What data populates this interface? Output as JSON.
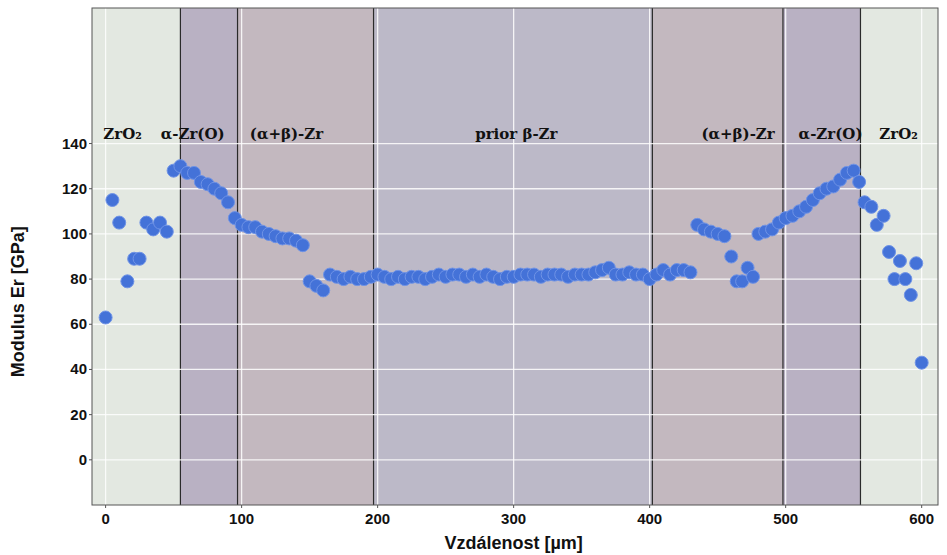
{
  "chart_data": {
    "type": "scatter",
    "xlabel": "Vzdálenost [µm]",
    "ylabel": "Modulus Er [GPa]",
    "xlim": [
      -10,
      612
    ],
    "ylim": [
      -20,
      200
    ],
    "xticks": [
      0,
      100,
      200,
      300,
      400,
      500,
      600
    ],
    "yticks": [
      0,
      20,
      40,
      60,
      80,
      100,
      120,
      140
    ],
    "grid": true,
    "color": "#4472d8",
    "marker": "circle",
    "regions": [
      {
        "x0": -10,
        "x1": 55,
        "color": "#e3e8e1"
      },
      {
        "x0": 55,
        "x1": 97,
        "color": "#b9b1c3"
      },
      {
        "x0": 97,
        "x1": 197,
        "color": "#c3b8bf"
      },
      {
        "x0": 197,
        "x1": 402,
        "color": "#bcb9c8"
      },
      {
        "x0": 402,
        "x1": 498,
        "color": "#c3b8bf"
      },
      {
        "x0": 498,
        "x1": 555,
        "color": "#b9b1c3"
      },
      {
        "x0": 555,
        "x1": 612,
        "color": "#e3e8e1"
      }
    ],
    "annotations": [
      {
        "text": "ZrO₂",
        "x": 12.5,
        "y": 142
      },
      {
        "text": "α-Zr(O)",
        "x": 64,
        "y": 142
      },
      {
        "text": "(α+β)-Zr",
        "x": 133,
        "y": 142
      },
      {
        "text": "prior β-Zr",
        "x": 302,
        "y": 142
      },
      {
        "text": "(α+β)-Zr",
        "x": 465,
        "y": 142
      },
      {
        "text": "α-Zr(O)",
        "x": 533,
        "y": 142
      },
      {
        "text": "ZrO₂",
        "x": 583,
        "y": 142
      }
    ],
    "x": [
      0,
      5,
      10,
      16,
      21,
      25,
      30,
      35,
      40,
      45,
      50,
      55,
      60,
      65,
      70,
      75,
      80,
      85,
      90,
      95,
      100,
      105,
      110,
      115,
      120,
      125,
      130,
      135,
      140,
      145,
      150,
      155,
      160,
      165,
      170,
      175,
      180,
      185,
      190,
      195,
      200,
      205,
      210,
      215,
      220,
      225,
      230,
      235,
      240,
      245,
      250,
      255,
      260,
      265,
      270,
      275,
      280,
      285,
      290,
      295,
      300,
      305,
      310,
      315,
      320,
      325,
      330,
      335,
      340,
      345,
      350,
      355,
      360,
      365,
      370,
      375,
      380,
      385,
      390,
      395,
      400,
      405,
      410,
      415,
      420,
      425,
      430,
      435,
      440,
      445,
      450,
      455,
      460,
      464,
      468,
      472,
      476,
      480,
      485,
      490,
      495,
      500,
      505,
      510,
      515,
      520,
      525,
      530,
      535,
      540,
      545,
      550,
      554,
      558,
      563,
      567,
      572,
      576,
      580,
      584,
      588,
      592,
      596,
      600
    ],
    "values": [
      63,
      115,
      105,
      79,
      89,
      89,
      105,
      102,
      105,
      101,
      128,
      130,
      127,
      127,
      123,
      122,
      120,
      118,
      114,
      107,
      104,
      103,
      103,
      101,
      100,
      99,
      98,
      98,
      97,
      95,
      79,
      77,
      75,
      82,
      81,
      80,
      81,
      80,
      80,
      81,
      82,
      81,
      80,
      81,
      80,
      81,
      81,
      80,
      81,
      82,
      81,
      82,
      82,
      81,
      82,
      81,
      82,
      81,
      80,
      81,
      81,
      82,
      82,
      82,
      81,
      82,
      82,
      82,
      81,
      82,
      82,
      82,
      83,
      84,
      85,
      82,
      82,
      83,
      82,
      82,
      80,
      82,
      84,
      82,
      84,
      84,
      83,
      104,
      102,
      101,
      100,
      99,
      90,
      79,
      79,
      85,
      81,
      100,
      101,
      102,
      105,
      107,
      108,
      110,
      112,
      115,
      118,
      120,
      121,
      124,
      127,
      128,
      123,
      114,
      112,
      104,
      108,
      92,
      80,
      88,
      80,
      73,
      87,
      43
    ]
  }
}
